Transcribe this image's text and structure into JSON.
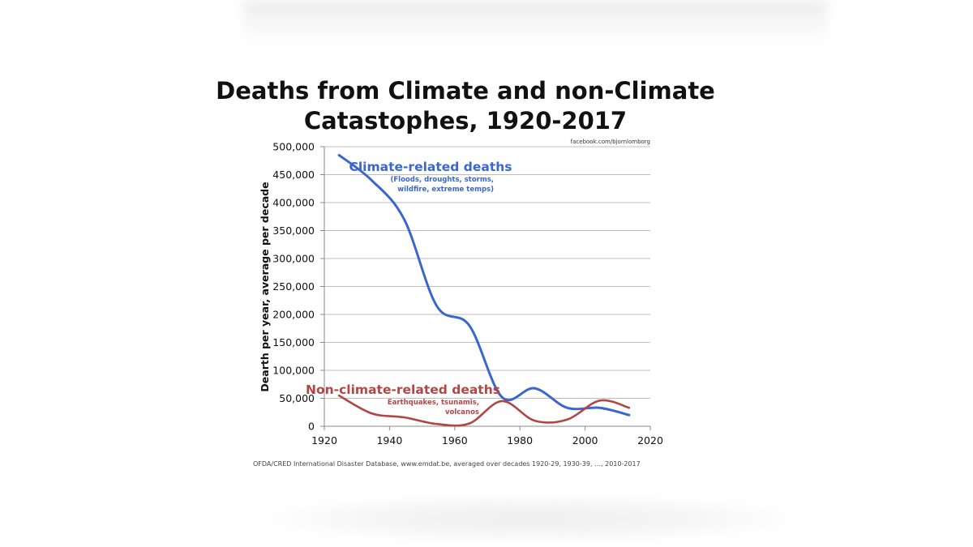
{
  "colors": {
    "climate": "#3a66cf",
    "non_climate": "#b04747",
    "grid": "#bdbdbd",
    "axis": "#888888",
    "text": "#111111"
  },
  "chart_data": {
    "type": "line",
    "title_line1": "Deaths from Climate and non-Climate",
    "title_line2": "Catastophes, 1920-2017",
    "credit": "facebook.com/bjornlomborg",
    "xlabel": "",
    "ylabel": "Dearth per year, average per decade",
    "xlim": [
      1920,
      2020
    ],
    "ylim": [
      0,
      500000
    ],
    "x_ticks": [
      1920,
      1940,
      1960,
      1980,
      2000,
      2020
    ],
    "x_tick_labels": [
      "1920",
      "1940",
      "1960",
      "1980",
      "2000",
      "2020"
    ],
    "y_ticks": [
      0,
      50000,
      100000,
      150000,
      200000,
      250000,
      300000,
      350000,
      400000,
      450000,
      500000
    ],
    "y_tick_labels": [
      "0",
      "50,000",
      "100,000",
      "150,000",
      "200,000",
      "250,000",
      "300,000",
      "350,000",
      "400,000",
      "450,000",
      "500,000"
    ],
    "grid": true,
    "series": [
      {
        "name": "Climate-related deaths",
        "x": [
          1924.5,
          1934.5,
          1944.5,
          1954.5,
          1964.5,
          1974.5,
          1984.5,
          1994.5,
          2004.5,
          2013.5
        ],
        "values": [
          485000,
          440000,
          370000,
          215000,
          180000,
          52000,
          68000,
          33000,
          33000,
          20000
        ]
      },
      {
        "name": "Non-climate-related deaths",
        "x": [
          1924.5,
          1934.5,
          1944.5,
          1954.5,
          1964.5,
          1974.5,
          1984.5,
          1994.5,
          2004.5,
          2013.5
        ],
        "values": [
          55000,
          23000,
          16000,
          4000,
          5000,
          45000,
          10000,
          12000,
          46000,
          33000
        ]
      }
    ],
    "annotations": [
      {
        "series": 0,
        "label": "Climate-related deaths",
        "sub": [
          "(Floods, droughts, storms,",
          "wildfire, extreme temps)"
        ]
      },
      {
        "series": 1,
        "label": "Non-climate-related deaths",
        "sub": [
          "Earthquakes, tsunamis,",
          "volcanos"
        ]
      }
    ],
    "source": "OFDA/CRED  International Disaster Database, www.emdat.be, averaged over decades 1920-29, 1930-39, …, 2010-2017"
  }
}
